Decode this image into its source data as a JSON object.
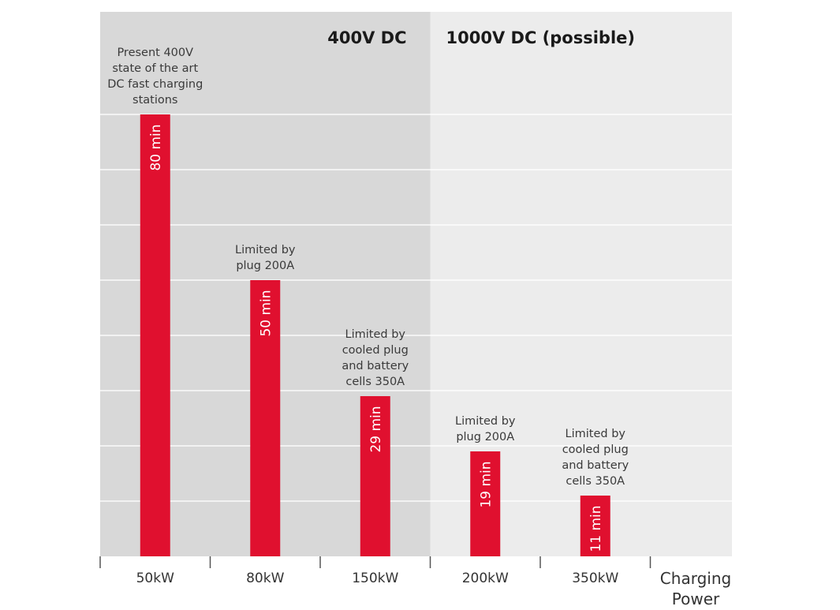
{
  "chart_data": {
    "type": "bar",
    "categories": [
      "50kW",
      "80kW",
      "150kW",
      "200kW",
      "350kW"
    ],
    "values": [
      80,
      50,
      29,
      19,
      11
    ],
    "value_labels": [
      "80 min",
      "50 min",
      "29 min",
      "19 min",
      "11 min"
    ],
    "xlabel": "Charging Power",
    "xlabel_lines": [
      "Charging",
      "Power"
    ],
    "ylabel": "",
    "ylim": [
      0,
      100
    ],
    "grid": true,
    "bar_color": "#e0102f",
    "regions": [
      {
        "label": "400V DC",
        "from_category": 0,
        "to_category": 2,
        "color": "#d8d8d8"
      },
      {
        "label": "1000V DC (possible)",
        "from_category": 3,
        "to_category": 5,
        "color": "#ececec"
      }
    ],
    "annotations": [
      {
        "category": 0,
        "lines": [
          "Present 400V",
          "state of the art",
          "DC fast charging",
          "stations"
        ]
      },
      {
        "category": 1,
        "lines": [
          "Limited by",
          "plug 200A"
        ]
      },
      {
        "category": 2,
        "lines": [
          "Limited by",
          "cooled plug",
          "and battery",
          "cells 350A"
        ]
      },
      {
        "category": 3,
        "lines": [
          "Limited by",
          "plug 200A"
        ]
      },
      {
        "category": 4,
        "lines": [
          "Limited by",
          "cooled plug",
          "and battery",
          "cells 350A"
        ]
      }
    ]
  }
}
